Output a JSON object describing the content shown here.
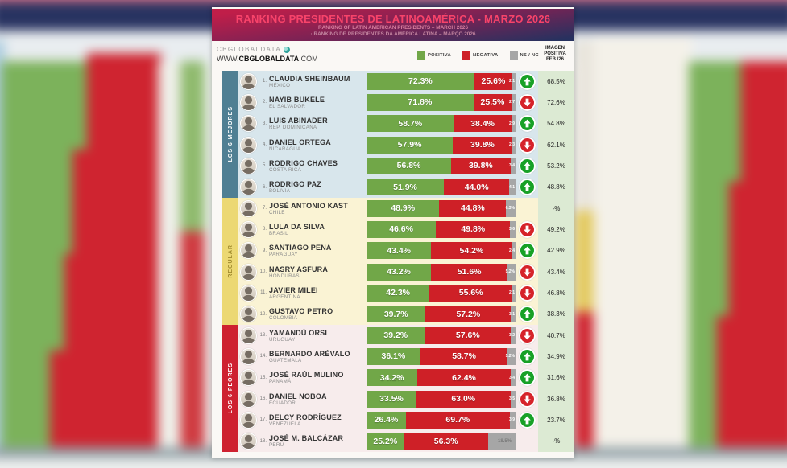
{
  "header": {
    "title": "RANKING PRESIDENTES DE LATINOAMÉRICA - MARZO 2026",
    "subtitle_en": "RANKING OF LATIN AMERICAN PRESIDENTS – MARCH 2026",
    "subtitle_pt": "· RANKING DE PRESIDENTES DA AMÉRICA LATINA – MARÇO 2026"
  },
  "brand": {
    "name": "CBGLOBALDATA",
    "url_prefix": "WWW.",
    "url_bold": "CBGLOBALDATA",
    "url_suffix": ".COM"
  },
  "legend": [
    {
      "label": "POSITIVA",
      "color": "#71a748"
    },
    {
      "label": "NEGATIVA",
      "color": "#ce2027"
    },
    {
      "label": "NS / NC",
      "color": "#a6a6a6"
    }
  ],
  "prev_column_header": "IMAGEN POSITIVA FEB./26",
  "colors": {
    "positive_bar": "#71a748",
    "negative_bar": "#ce2027",
    "nsnc_bar": "#a6a6a6",
    "arrow_up": "#18a127",
    "arrow_down": "#d6232a",
    "prev_col_bg": "#dcead3"
  },
  "chart_data": {
    "type": "bar",
    "title": "RANKING PRESIDENTES DE LATINOAMÉRICA - MARZO 2026",
    "series_legend": [
      "POSITIVA",
      "NEGATIVA",
      "NS / NC"
    ],
    "sections": [
      {
        "label": "LOS 6 MEJORES",
        "band_color": "#4f7f93",
        "band_text": "#ffffff",
        "row_bg": "#d8e6ec",
        "rows": [
          {
            "rank": "1.",
            "name": "CLAUDIA SHEINBAUM",
            "country": "MÉXICO",
            "positive": 72.3,
            "negative": 25.6,
            "ns_label": "2.1",
            "trend": "up",
            "previous": "68.5%"
          },
          {
            "rank": "2.",
            "name": "NAYIB BUKELE",
            "country": "EL SALVADOR",
            "positive": 71.8,
            "negative": 25.5,
            "ns_label": "2.7",
            "trend": "down",
            "previous": "72.6%"
          },
          {
            "rank": "3.",
            "name": "LUIS ABINADER",
            "country": "REP. DOMINICANA",
            "positive": 58.7,
            "negative": 38.4,
            "ns_label": "2.9",
            "trend": "up",
            "previous": "54.8%"
          },
          {
            "rank": "4.",
            "name": "DANIEL ORTEGA",
            "country": "NICARAGUA",
            "positive": 57.9,
            "negative": 39.8,
            "ns_label": "2.3",
            "trend": "down",
            "previous": "62.1%"
          },
          {
            "rank": "5.",
            "name": "RODRIGO CHAVES",
            "country": "COSTA RICA",
            "positive": 56.8,
            "negative": 39.8,
            "ns_label": "3.4",
            "trend": "up",
            "previous": "53.2%"
          },
          {
            "rank": "6.",
            "name": "RODRIGO PAZ",
            "country": "BOLIVIA",
            "positive": 51.9,
            "negative": 44.0,
            "ns_label": "4.1",
            "trend": "up",
            "previous": "48.8%"
          }
        ]
      },
      {
        "label": "REGULAR",
        "band_color": "#ecd873",
        "band_text": "#a08a2e",
        "row_bg": "#faf3d4",
        "rows": [
          {
            "rank": "7.",
            "name": "JOSÉ ANTONIO KAST",
            "country": "CHILE",
            "positive": 48.9,
            "negative": 44.8,
            "ns_label": "6.3%",
            "trend": null,
            "previous": "-%"
          },
          {
            "rank": "8.",
            "name": "LULA DA SILVA",
            "country": "BRASIL",
            "positive": 46.6,
            "negative": 49.8,
            "ns_label": "3.6",
            "trend": "down",
            "previous": "49.2%"
          },
          {
            "rank": "9.",
            "name": "SANTIAGO PEÑA",
            "country": "PARAGUAY",
            "positive": 43.4,
            "negative": 54.2,
            "ns_label": "2.4",
            "trend": "up",
            "previous": "42.9%"
          },
          {
            "rank": "10.",
            "name": "NASRY ASFURA",
            "country": "HONDURAS",
            "positive": 43.2,
            "negative": 51.6,
            "ns_label": "5.2%",
            "trend": "down",
            "previous": "43.4%"
          },
          {
            "rank": "11.",
            "name": "JAVIER MILEI",
            "country": "ARGENTINA",
            "positive": 42.3,
            "negative": 55.6,
            "ns_label": "2.1",
            "trend": "down",
            "previous": "46.8%"
          },
          {
            "rank": "12.",
            "name": "GUSTAVO PETRO",
            "country": "COLOMBIA",
            "positive": 39.7,
            "negative": 57.2,
            "ns_label": "3.1",
            "trend": "up",
            "previous": "38.3%"
          }
        ]
      },
      {
        "label": "LOS 6 PEORES",
        "band_color": "#ce2130",
        "band_text": "#ffffff",
        "row_bg": "#f7ecec",
        "rows": [
          {
            "rank": "13.",
            "name": "YAMANDÚ ORSI",
            "country": "URUGUAY",
            "positive": 39.2,
            "negative": 57.6,
            "ns_label": "3.2",
            "trend": "down",
            "previous": "40.7%"
          },
          {
            "rank": "14.",
            "name": "BERNARDO ARÉVALO",
            "country": "GUATEMALA",
            "positive": 36.1,
            "negative": 58.7,
            "ns_label": "5.2%",
            "trend": "up",
            "previous": "34.9%"
          },
          {
            "rank": "15.",
            "name": "JOSÉ RAÚL MULINO",
            "country": "PANAMÁ",
            "positive": 34.2,
            "negative": 62.4,
            "ns_label": "3.4",
            "trend": "up",
            "previous": "31.6%"
          },
          {
            "rank": "16.",
            "name": "DANIEL NOBOA",
            "country": "ECUADOR",
            "positive": 33.5,
            "negative": 63.0,
            "ns_label": "3.5",
            "trend": "down",
            "previous": "36.8%"
          },
          {
            "rank": "17.",
            "name": "DELCY RODRÍGUEZ",
            "country": "VENEZUELA",
            "positive": 26.4,
            "negative": 69.7,
            "ns_label": "3.9",
            "trend": "up",
            "previous": "23.7%"
          },
          {
            "rank": "18.",
            "name": "JOSÉ M. BALCÁZAR",
            "country": "PERÚ",
            "positive": 25.2,
            "negative": 56.3,
            "ns_label": "18.5%",
            "trend": null,
            "previous": "-%"
          }
        ]
      }
    ]
  }
}
